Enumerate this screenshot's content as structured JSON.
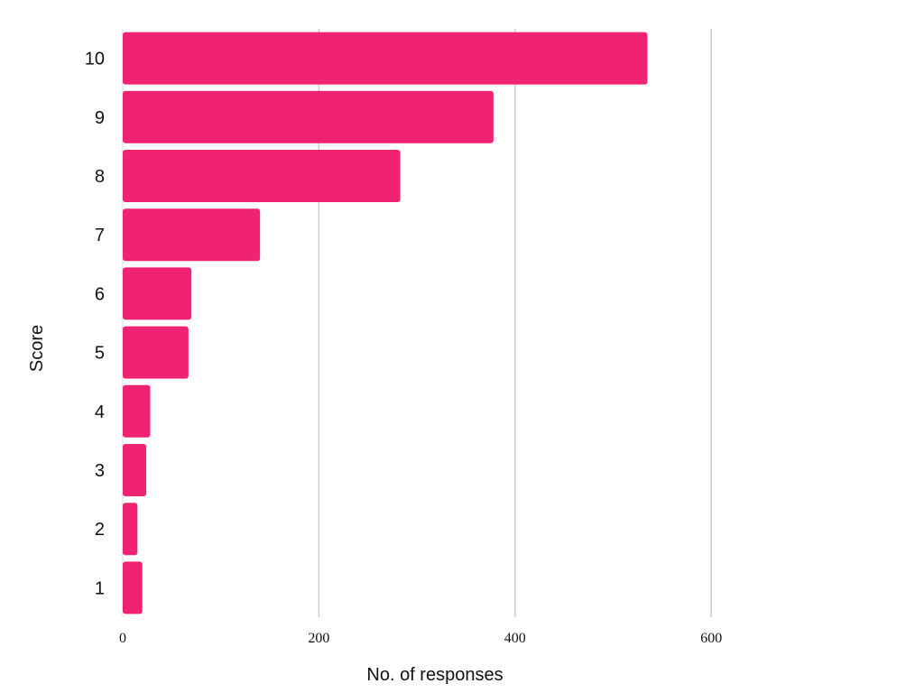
{
  "chart_data": {
    "type": "bar",
    "orientation": "horizontal",
    "title": "",
    "xlabel": "No. of responses",
    "ylabel": "Score",
    "categories": [
      "10",
      "9",
      "8",
      "7",
      "6",
      "5",
      "4",
      "3",
      "2",
      "1"
    ],
    "values": [
      535,
      378,
      283,
      140,
      70,
      67,
      28,
      24,
      15,
      20
    ],
    "xlim": [
      0,
      800
    ],
    "xticks": [
      0,
      200,
      400,
      600
    ],
    "xtick_labels": [
      "0",
      "200",
      "400",
      "600"
    ],
    "grid": "vertical",
    "legend": "none",
    "bar_color": "#f02272"
  }
}
